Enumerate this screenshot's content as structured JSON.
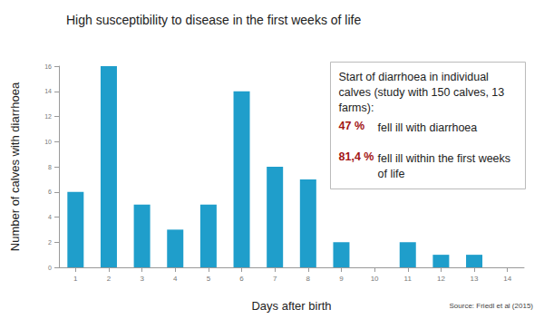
{
  "chart_data": {
    "type": "bar",
    "title": "High susceptibility to disease in the first weeks of life",
    "x_label": "Days after birth",
    "y_label": "Number of calves with diarrhoea",
    "categories": [
      "1",
      "2",
      "3",
      "4",
      "5",
      "6",
      "7",
      "8",
      "9",
      "10",
      "11",
      "12",
      "13",
      "14"
    ],
    "values": [
      6,
      16,
      5,
      3,
      5,
      14,
      8,
      7,
      2,
      0,
      2,
      1,
      1,
      0
    ],
    "color": "#1f9ecb",
    "ylim": [
      0,
      16
    ],
    "yticks": [
      0,
      2,
      4,
      6,
      8,
      10,
      12,
      14,
      16
    ],
    "grid": false,
    "annotation": {
      "title": "Start of diarrhoea in individual calves (study with 150 calves, 13 farms):",
      "items": [
        {
          "figure": "47 %",
          "text": "fell ill with diarrhoea"
        },
        {
          "figure": "81,4 %",
          "text": "fell ill within the first weeks of life"
        }
      ]
    },
    "source": "Source: Friedl et al (2015)"
  }
}
